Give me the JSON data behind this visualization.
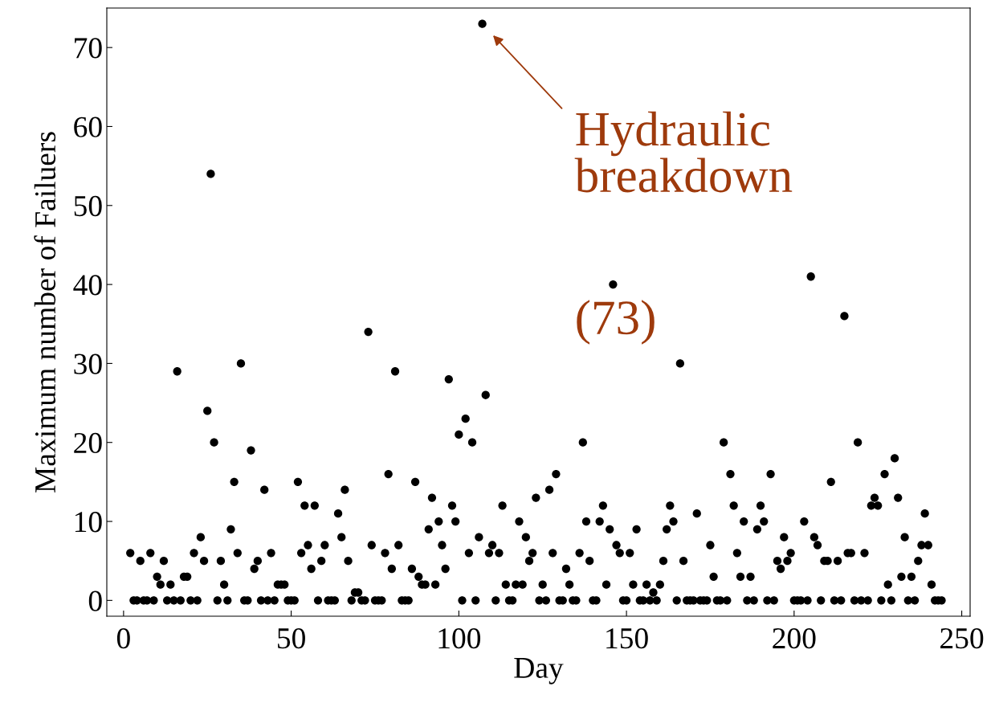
{
  "chart_data": {
    "type": "scatter",
    "xlabel": "Day",
    "ylabel": "Maximum number of Failuers",
    "x": [
      2,
      3,
      4,
      5,
      6,
      7,
      8,
      9,
      10,
      11,
      12,
      13,
      14,
      15,
      16,
      17,
      18,
      19,
      20,
      21,
      22,
      23,
      24,
      25,
      26,
      27,
      28,
      29,
      30,
      31,
      32,
      33,
      34,
      35,
      36,
      37,
      38,
      39,
      40,
      41,
      42,
      43,
      44,
      45,
      46,
      47,
      48,
      49,
      50,
      51,
      52,
      53,
      54,
      55,
      56,
      57,
      58,
      59,
      60,
      61,
      62,
      63,
      64,
      65,
      66,
      67,
      68,
      69,
      70,
      71,
      72,
      73,
      74,
      75,
      76,
      77,
      78,
      79,
      80,
      81,
      82,
      83,
      84,
      85,
      86,
      87,
      88,
      89,
      90,
      91,
      92,
      93,
      94,
      95,
      96,
      97,
      98,
      99,
      100,
      101,
      102,
      103,
      104,
      105,
      106,
      107,
      108,
      109,
      110,
      111,
      112,
      113,
      114,
      115,
      116,
      117,
      118,
      119,
      120,
      121,
      122,
      123,
      124,
      125,
      126,
      127,
      128,
      129,
      130,
      131,
      132,
      133,
      134,
      135,
      136,
      137,
      138,
      139,
      140,
      141,
      142,
      143,
      144,
      145,
      146,
      147,
      148,
      149,
      150,
      151,
      152,
      153,
      154,
      155,
      156,
      157,
      158,
      159,
      160,
      161,
      162,
      163,
      164,
      165,
      166,
      167,
      168,
      169,
      170,
      171,
      172,
      173,
      174,
      175,
      176,
      177,
      178,
      179,
      180,
      181,
      182,
      183,
      184,
      185,
      186,
      187,
      188,
      189,
      190,
      191,
      192,
      193,
      194,
      195,
      196,
      197,
      198,
      199,
      200,
      201,
      202,
      203,
      204,
      205,
      206,
      207,
      208,
      209,
      210,
      211,
      212,
      213,
      214,
      215,
      216,
      217,
      218,
      219,
      220,
      221,
      222,
      223,
      224,
      225,
      226,
      227,
      228,
      229,
      230,
      231,
      232,
      233,
      234,
      235,
      236,
      237,
      238,
      239,
      240,
      241,
      242,
      243,
      244
    ],
    "series": [
      {
        "color": "#000000",
        "values": [
          6,
          0,
          0,
          5,
          0,
          0,
          6,
          0,
          3,
          2,
          5,
          0,
          2,
          0,
          29,
          0,
          3,
          3,
          0,
          6,
          0,
          8,
          5,
          24,
          54,
          20,
          0,
          5,
          2,
          0,
          9,
          15,
          6,
          30,
          0,
          0,
          19,
          4,
          5,
          0,
          14,
          0,
          6,
          0,
          2,
          2,
          2,
          0,
          0,
          0,
          15,
          6,
          12,
          7,
          4,
          12,
          0,
          5,
          7,
          0,
          0,
          0,
          11,
          8,
          14,
          5,
          0,
          1,
          1,
          0,
          0,
          34,
          7,
          0,
          0,
          0,
          6,
          16,
          4,
          29,
          7,
          0,
          0,
          0,
          4,
          15,
          3,
          2,
          2,
          9,
          13,
          2,
          10,
          7,
          4,
          28,
          12,
          10,
          21,
          0,
          23,
          6,
          20,
          0,
          8,
          73,
          26,
          6,
          7,
          0,
          6,
          12,
          2,
          0,
          0,
          2,
          10,
          2,
          8,
          5,
          6,
          13,
          0,
          2,
          0,
          14,
          6,
          16,
          0,
          0,
          4,
          2,
          0,
          0,
          6,
          20,
          10,
          5,
          0,
          0,
          10,
          12,
          2,
          9,
          40,
          7,
          6,
          0,
          0,
          6,
          2,
          9,
          0,
          0,
          2,
          0,
          1,
          0,
          2,
          5,
          9,
          12,
          10,
          0,
          30,
          5,
          0,
          0,
          0,
          11,
          0,
          0,
          0,
          7,
          3,
          0,
          0,
          20,
          0,
          16,
          12,
          6,
          3,
          10,
          0,
          3,
          0,
          9,
          12,
          10,
          0,
          16,
          0,
          5,
          4,
          8,
          5,
          6,
          0,
          0,
          0,
          10,
          0,
          41,
          8,
          7,
          0,
          5,
          5,
          15,
          0,
          5,
          0,
          36,
          6,
          6,
          0,
          20,
          0,
          6,
          0,
          12,
          13,
          12,
          0,
          16,
          2,
          0,
          18,
          13,
          3,
          8,
          0,
          3,
          0,
          5,
          7,
          11,
          7,
          2,
          0,
          0,
          0
        ]
      }
    ],
    "xlim": [
      -5,
      252.5
    ],
    "ylim": [
      -2,
      75
    ],
    "xticks": [
      0,
      50,
      100,
      150,
      200,
      250
    ],
    "yticks": [
      0,
      10,
      20,
      30,
      40,
      50,
      60,
      70
    ],
    "grid": false,
    "legend": false,
    "marker": "circle",
    "annotations": [
      {
        "text": "Hydraulic\nbreakdown",
        "x": 107,
        "y": 73
      },
      "(73)"
    ]
  }
}
